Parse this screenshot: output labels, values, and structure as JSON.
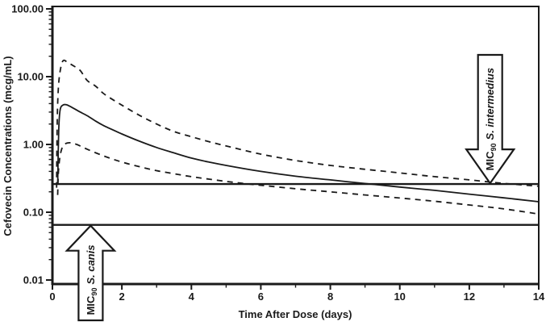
{
  "figure": {
    "background": "#ffffff",
    "ink": "#1a1a1a"
  },
  "chart_data": {
    "type": "line",
    "title": "",
    "xlabel": "Time After Dose (days)",
    "ylabel": "Cefovecin Concentrations (mcg/mL)",
    "xlim": [
      0,
      14
    ],
    "x_major_ticks": [
      0,
      2,
      4,
      6,
      8,
      10,
      12,
      14
    ],
    "x_minor_ticks": [
      1,
      3,
      5,
      7,
      9,
      11,
      13
    ],
    "y_scale": "log",
    "ylim": [
      0.0087,
      108
    ],
    "y_major_ticks": [
      {
        "value": 100,
        "label": "100.00"
      },
      {
        "value": 10,
        "label": "10.00"
      },
      {
        "value": 1,
        "label": "1.00"
      },
      {
        "value": 0.1,
        "label": "0.10"
      },
      {
        "value": 0.01,
        "label": "0.01"
      }
    ],
    "grid": "off",
    "legend": "none",
    "series": [
      {
        "name": "mean-concentration",
        "style": "solid",
        "points": [
          [
            0.15,
            0.26
          ],
          [
            0.18,
            1.6
          ],
          [
            0.22,
            3.2
          ],
          [
            0.3,
            3.8
          ],
          [
            0.4,
            3.85
          ],
          [
            0.55,
            3.55
          ],
          [
            0.75,
            3.1
          ],
          [
            1,
            2.65
          ],
          [
            1.25,
            2.2
          ],
          [
            1.5,
            1.87
          ],
          [
            2,
            1.43
          ],
          [
            2.5,
            1.12
          ],
          [
            3,
            0.9
          ],
          [
            3.5,
            0.75
          ],
          [
            4,
            0.63
          ],
          [
            4.5,
            0.55
          ],
          [
            5,
            0.49
          ],
          [
            6,
            0.4
          ],
          [
            7,
            0.34
          ],
          [
            8,
            0.3
          ],
          [
            9,
            0.265
          ],
          [
            10,
            0.235
          ],
          [
            11,
            0.21
          ],
          [
            12,
            0.185
          ],
          [
            13,
            0.163
          ],
          [
            14,
            0.143
          ]
        ]
      },
      {
        "name": "upper-bound-dashed",
        "style": "dashed",
        "points": [
          [
            0.12,
            0.23
          ],
          [
            0.13,
            1.0
          ],
          [
            0.15,
            4.0
          ],
          [
            0.2,
            10
          ],
          [
            0.3,
            17
          ],
          [
            0.45,
            16
          ],
          [
            0.6,
            14.5
          ],
          [
            0.8,
            12.3
          ],
          [
            1,
            8.8
          ],
          [
            1.25,
            7.2
          ],
          [
            1.5,
            5.5
          ],
          [
            2,
            3.8
          ],
          [
            2.5,
            2.7
          ],
          [
            3,
            2.0
          ],
          [
            3.5,
            1.55
          ],
          [
            4,
            1.3
          ],
          [
            4.5,
            1.1
          ],
          [
            5,
            0.95
          ],
          [
            6,
            0.72
          ],
          [
            7,
            0.58
          ],
          [
            8,
            0.49
          ],
          [
            9,
            0.43
          ],
          [
            10,
            0.38
          ],
          [
            11,
            0.335
          ],
          [
            12,
            0.3
          ],
          [
            13,
            0.266
          ],
          [
            14,
            0.242
          ]
        ]
      },
      {
        "name": "lower-bound-dashed",
        "style": "dashed",
        "points": [
          [
            0.15,
            0.18
          ],
          [
            0.18,
            0.45
          ],
          [
            0.25,
            0.8
          ],
          [
            0.35,
            1.0
          ],
          [
            0.5,
            1.06
          ],
          [
            0.7,
            1.0
          ],
          [
            1,
            0.85
          ],
          [
            1.5,
            0.67
          ],
          [
            2,
            0.55
          ],
          [
            2.5,
            0.47
          ],
          [
            3,
            0.41
          ],
          [
            3.5,
            0.37
          ],
          [
            4,
            0.335
          ],
          [
            5,
            0.285
          ],
          [
            6,
            0.25
          ],
          [
            7,
            0.222
          ],
          [
            8,
            0.2
          ],
          [
            9,
            0.18
          ],
          [
            10,
            0.162
          ],
          [
            11,
            0.145
          ],
          [
            12,
            0.128
          ],
          [
            13,
            0.112
          ],
          [
            14,
            0.094
          ]
        ]
      }
    ],
    "reference_lines": [
      {
        "name": "mic90-s-intermedius-line",
        "value": 0.26
      },
      {
        "name": "mic90-s-canis-line",
        "value": 0.065
      }
    ],
    "annotations": [
      {
        "name": "mic90-s-intermedius-arrow",
        "direction": "down",
        "day": 12.6,
        "points_to_value": 0.26,
        "label": "MIC90 S. intermedius",
        "label_parts": {
          "prefix": "MIC",
          "subscript": "90",
          "species": "S. intermedius"
        }
      },
      {
        "name": "mic90-s-canis-arrow",
        "direction": "up",
        "day": 1.1,
        "points_to_value": 0.065,
        "label": "MIC90 S. canis",
        "label_parts": {
          "prefix": "MIC",
          "subscript": "90",
          "species": "S. canis"
        }
      }
    ]
  }
}
